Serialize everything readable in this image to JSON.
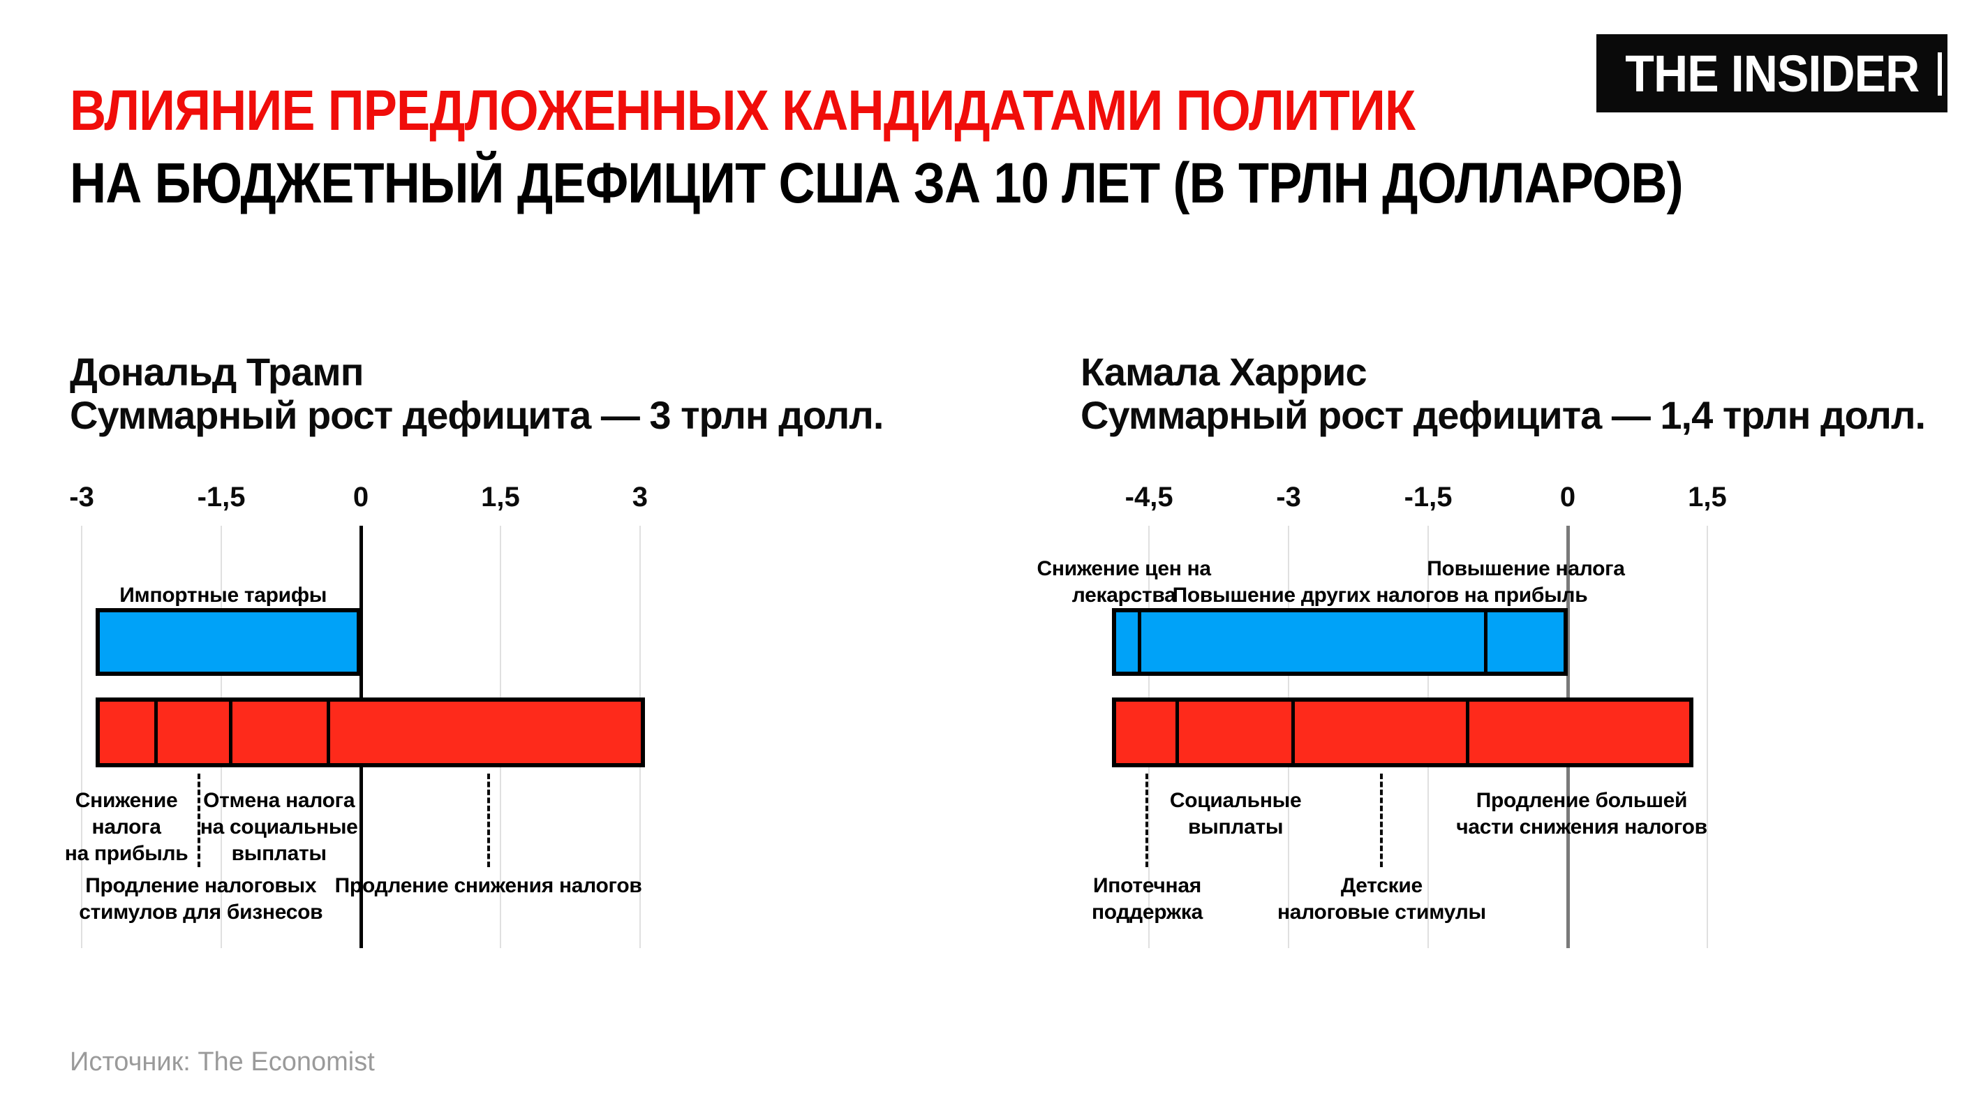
{
  "page": {
    "title_line1": "ВЛИЯНИЕ ПРЕДЛОЖЕННЫХ КАНДИДАТАМИ ПОЛИТИК",
    "title_line2": "НА БЮДЖЕТНЫЙ ДЕФИЦИТ США ЗА 10 ЛЕТ (В ТРЛН ДОЛЛАРОВ)",
    "logo_text": "THE INSIDER",
    "source": "Источник: The Economist"
  },
  "colors": {
    "title_red": "#f00d0a",
    "text_black": "#0b0b0b",
    "bar_blue": "#00a2f8",
    "bar_red": "#fe2a1b",
    "grid_gray": "#e0e0e0",
    "zero_black": "#000000",
    "zero_gray": "#7a7a7a",
    "source_gray": "#9a9a9a"
  },
  "chart_data": [
    {
      "type": "bar",
      "candidate": "Дональд Трамп",
      "total_label": "Суммарный рост дефицита — 3 трлн долл.",
      "units": "трлн долл.",
      "axis": {
        "ticks": [
          {
            "value": -3,
            "label": "-3"
          },
          {
            "value": -1.5,
            "label": "-1,5"
          },
          {
            "value": 0,
            "label": "0"
          },
          {
            "value": 1.5,
            "label": "1,5"
          },
          {
            "value": 3,
            "label": "3"
          }
        ],
        "zero_line_color_key": "zero_black"
      },
      "bars": {
        "savings": {
          "color_key": "bar_blue",
          "segments": [
            {
              "name": "Импортные тарифы",
              "from": -2.85,
              "to": 0,
              "value_trln": -2.85
            }
          ]
        },
        "costs": {
          "color_key": "bar_red",
          "segments": [
            {
              "name": "Снижение налога на прибыль",
              "from": -2.85,
              "to": -2.2,
              "value_trln": 0.65
            },
            {
              "name": "Продление налоговых стимулов для бизнесов",
              "from": -2.2,
              "to": -1.4,
              "value_trln": 0.8
            },
            {
              "name": "Отмена налога на социальные выплаты",
              "from": -1.4,
              "to": -0.35,
              "value_trln": 1.05
            },
            {
              "name": "Продление снижения налогов",
              "from": -0.35,
              "to": 3.05,
              "value_trln": 3.4
            }
          ]
        }
      },
      "net_change_trln": 3,
      "annotations": [
        {
          "text": [
            "Импортные тарифы"
          ],
          "x": -1.48,
          "row": "above"
        },
        {
          "text": [
            "Снижение",
            "налога",
            "на прибыль"
          ],
          "x": -2.52,
          "row": "below1"
        },
        {
          "text": [
            "Отмена налога",
            "на социальные",
            "выплаты"
          ],
          "x": -0.88,
          "row": "below1"
        },
        {
          "text": [
            "Продление налоговых",
            "стимулов для бизнесов"
          ],
          "x": -1.72,
          "row": "below2",
          "connector_x": -1.74
        },
        {
          "text": [
            "Продление снижения налогов"
          ],
          "x": 1.37,
          "row": "below2",
          "connector_x": 1.37
        }
      ]
    },
    {
      "type": "bar",
      "candidate": "Камала Харрис",
      "total_label": "Суммарный рост дефицита — 1,4 трлн долл.",
      "units": "трлн долл.",
      "axis": {
        "ticks": [
          {
            "value": -4.5,
            "label": "-4,5"
          },
          {
            "value": -3,
            "label": "-3"
          },
          {
            "value": -1.5,
            "label": "-1,5"
          },
          {
            "value": 0,
            "label": "0"
          },
          {
            "value": 1.5,
            "label": "1,5"
          }
        ],
        "zero_line_color_key": "zero_gray"
      },
      "bars": {
        "savings": {
          "color_key": "bar_blue",
          "segments": [
            {
              "name": "Снижение цен на лекарства",
              "from": -4.9,
              "to": -4.6,
              "value_trln": -0.3
            },
            {
              "name": "Повышение других налогов",
              "from": -4.6,
              "to": -0.88,
              "value_trln": -3.72
            },
            {
              "name": "Повышение налога на прибыль",
              "from": -0.88,
              "to": 0,
              "value_trln": -0.88
            }
          ]
        },
        "costs": {
          "color_key": "bar_red",
          "segments": [
            {
              "name": "Ипотечная поддержка",
              "from": -4.9,
              "to": -4.2,
              "value_trln": 0.7
            },
            {
              "name": "Социальные выплаты",
              "from": -4.2,
              "to": -2.95,
              "value_trln": 1.25
            },
            {
              "name": "Детские налоговые стимулы",
              "from": -2.95,
              "to": -1.08,
              "value_trln": 1.87
            },
            {
              "name": "Продление большей части снижения налогов",
              "from": -1.08,
              "to": 1.35,
              "value_trln": 2.43
            }
          ]
        }
      },
      "net_change_trln": 1.4,
      "annotations": [
        {
          "text": [
            "Снижение цен на",
            "лекарства"
          ],
          "x": -4.77,
          "row": "above"
        },
        {
          "text": [
            "Повышение других налогов"
          ],
          "x": -2.71,
          "row": "above"
        },
        {
          "text": [
            "Повышение налога",
            "на прибыль"
          ],
          "x": -0.45,
          "row": "above"
        },
        {
          "text": [
            "Социальные",
            "выплаты"
          ],
          "x": -3.57,
          "row": "below1"
        },
        {
          "text": [
            "Продление большей",
            "части снижения налогов"
          ],
          "x": 0.15,
          "row": "below1"
        },
        {
          "text": [
            "Ипотечная",
            "поддержка"
          ],
          "x": -4.52,
          "row": "below2",
          "connector_x": -4.52
        },
        {
          "text": [
            "Детские",
            "налоговые стимулы"
          ],
          "x": -2.0,
          "row": "below2",
          "connector_x": -2.0
        }
      ]
    }
  ]
}
